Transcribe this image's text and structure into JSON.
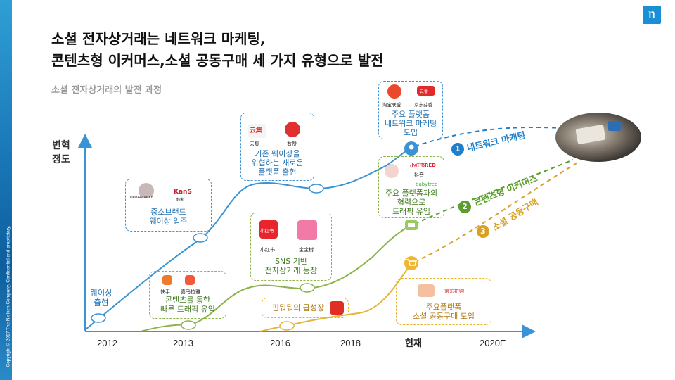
{
  "slide": {
    "title_line1": "소셜 전자상거래는 네트워크 마케팅,",
    "title_line2": "콘텐츠형 이커머스,소셜 공동구매 세 가지 유형으로 발전",
    "subtitle": "소셜 전자상거래의 발전 과정",
    "logo_letter": "n",
    "copyright": "Copyright © 2017 The Nielsen Company. Confidential and proprietary."
  },
  "axis": {
    "y_label_line1": "변혁",
    "y_label_line2": "정도",
    "x_ticks": [
      "2012",
      "2013",
      "2016",
      "2018",
      "현재",
      "2020E"
    ]
  },
  "start_label": {
    "line1": "웨이상",
    "line2": "출현"
  },
  "boxes": {
    "weishang_brands": {
      "logo1": "URBAN VILLE",
      "logo1_sub": "城市之家",
      "logo2": "KanS",
      "logo2_sub": "韩束",
      "line1": "중소브랜드",
      "line2": "웨이상 입주"
    },
    "weishang_platform": {
      "logo1": "云集",
      "logo1_name": "云集",
      "logo2": "👍",
      "logo2_name": "有赞",
      "line1": "기존 웨이상을",
      "line2": "위협하는 새로운",
      "line3": "플랫폼 출현"
    },
    "content_traffic": {
      "logo1_name": "快手",
      "logo2_name": "喜马拉雅",
      "line1": "콘텐츠를 통한",
      "line2": "빠른 트래픽 유입"
    },
    "sns_commerce": {
      "logo1": "小红书",
      "logo1_name": "小红书",
      "logo2_name": "宝宝树",
      "line1": "SNS 기반",
      "line2": "전자상거래 등장"
    },
    "pinduoduo": {
      "line1": "핀둬둬의 급성장"
    },
    "network_platform": {
      "logo1_name": "淘宝联盟",
      "logo2": "云番",
      "logo2_name": "京东芬香",
      "line1": "주요 플랫폼",
      "line2": "네트워크 마케팅",
      "line3": "도입"
    },
    "content_platform": {
      "logo1": "小红书RED",
      "logo2": "抖音",
      "logo3": "babytree",
      "line1": "주요 플랫폼과의",
      "line2": "협력으로",
      "line3": "트래픽 유입"
    },
    "groupbuy_platform": {
      "logo1": "京东拼购",
      "line1": "주요플랫폼",
      "line2": "소셜 공동구매 도입"
    }
  },
  "trends": [
    {
      "num": "1",
      "label": "네트워크 마케팅",
      "color": "#1f7fc9"
    },
    {
      "num": "2",
      "label": "콘텐츠형 이커머스",
      "color": "#5a9e2c"
    },
    {
      "num": "3",
      "label": "소셜 공동구매",
      "color": "#d9a021"
    }
  ]
}
